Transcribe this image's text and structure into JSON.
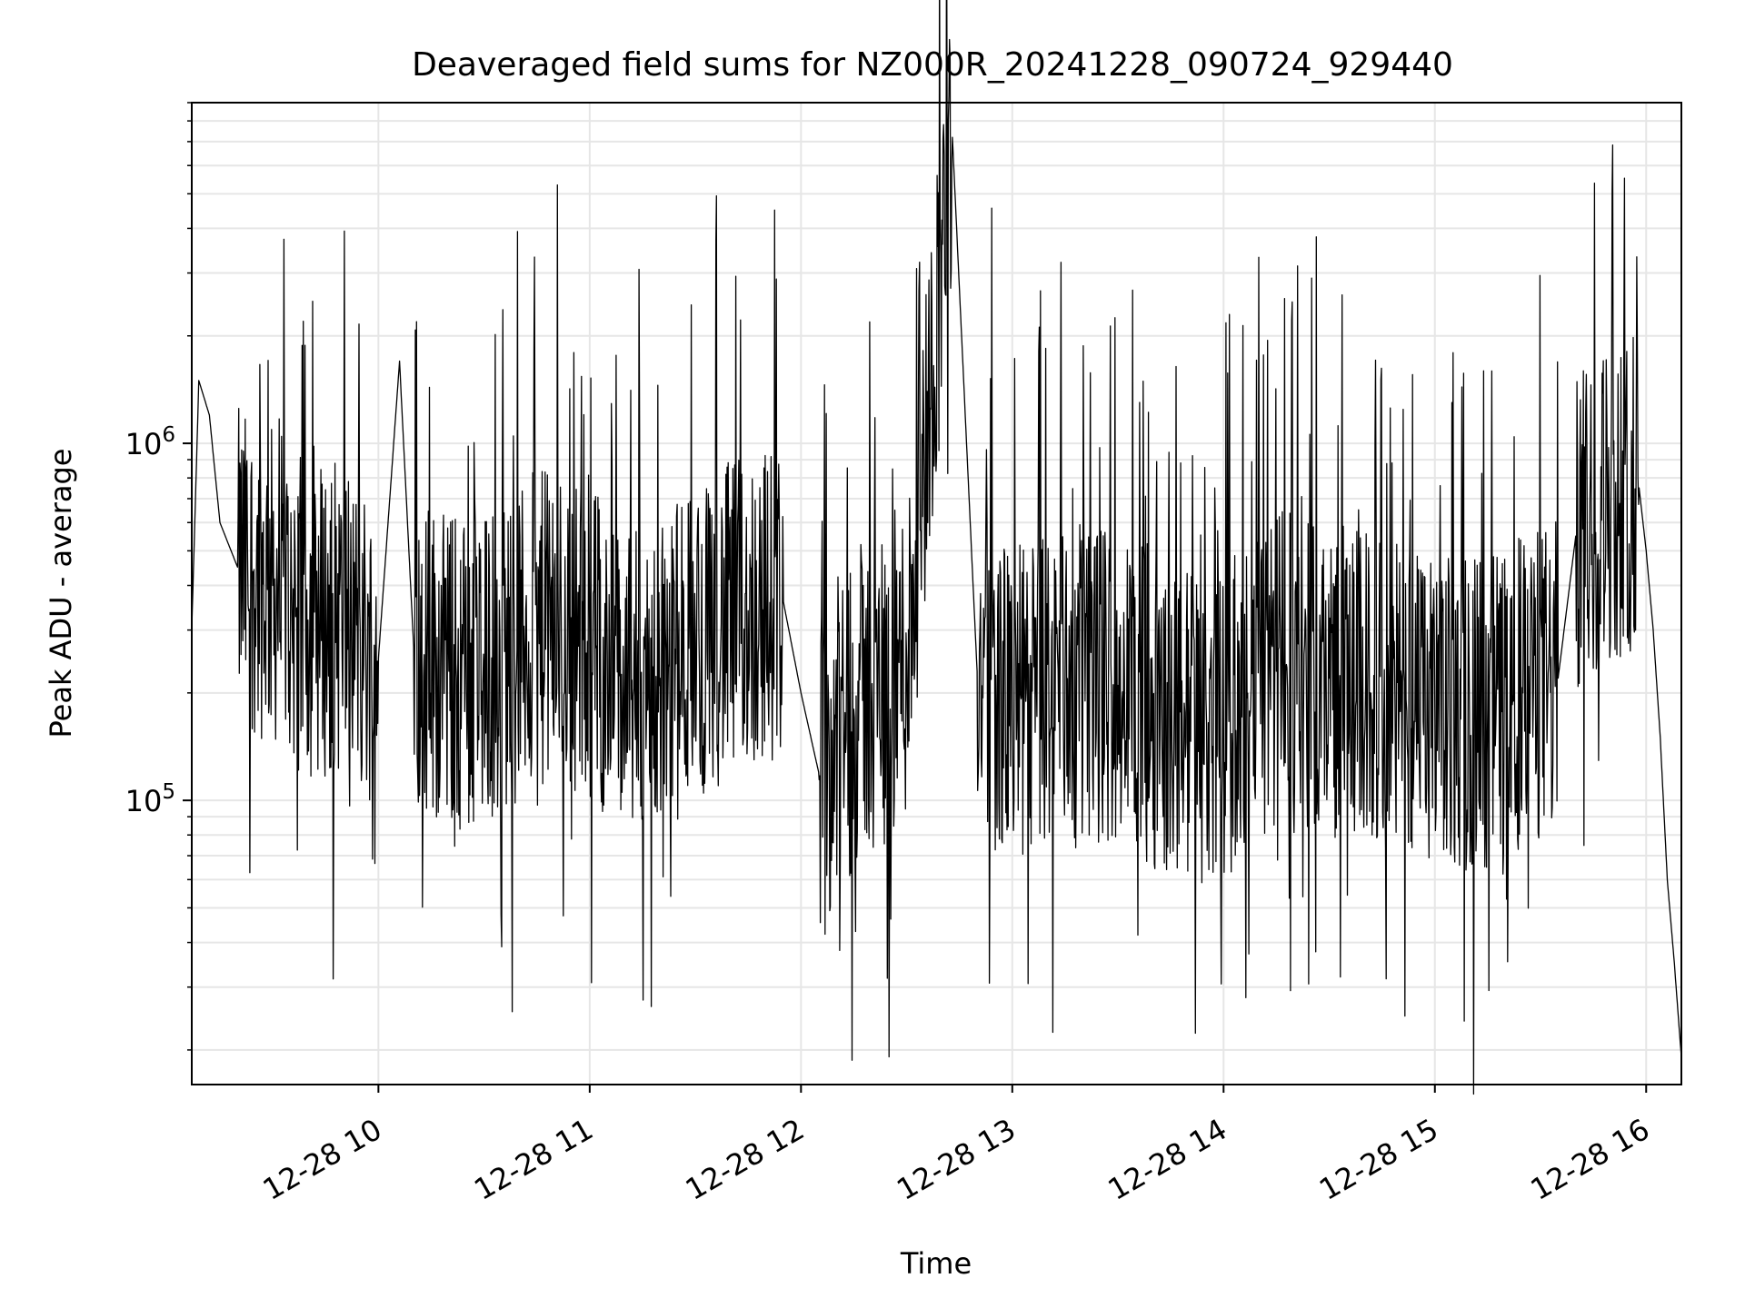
{
  "chart_data": {
    "type": "line",
    "title": "Deaveraged field sums for NZ000R_20241228_090724_929440",
    "xlabel": "Time",
    "ylabel": "Peak ADU - average",
    "x_axis": {
      "kind": "datetime",
      "range": [
        "2024-12-28 09:07",
        "2024-12-28 16:10"
      ],
      "ticks": [
        {
          "value": "2024-12-28 10:00",
          "label": "12-28 10"
        },
        {
          "value": "2024-12-28 11:00",
          "label": "12-28 11"
        },
        {
          "value": "2024-12-28 12:00",
          "label": "12-28 12"
        },
        {
          "value": "2024-12-28 13:00",
          "label": "12-28 13"
        },
        {
          "value": "2024-12-28 14:00",
          "label": "12-28 14"
        },
        {
          "value": "2024-12-28 15:00",
          "label": "12-28 15"
        },
        {
          "value": "2024-12-28 16:00",
          "label": "12-28 16"
        }
      ]
    },
    "y_axis": {
      "scale": "log",
      "range": [
        16000,
        9000000
      ],
      "ticks": [
        {
          "value": 100000,
          "base": "10",
          "exp": "5"
        },
        {
          "value": 1000000,
          "base": "10",
          "exp": "6"
        }
      ]
    },
    "grid": true,
    "line_color": "#000000",
    "series": [
      {
        "points": [
          [
            "2024-12-28 09:07",
            300000
          ],
          [
            "2024-12-28 09:09",
            1500000
          ],
          [
            "2024-12-28 09:12",
            1200000
          ],
          [
            "2024-12-28 09:15",
            600000
          ],
          [
            "2024-12-28 09:20",
            450000
          ],
          [
            "2024-12-28 09:30",
            400000
          ],
          [
            "2024-12-28 09:40",
            320000
          ],
          [
            "2024-12-28 09:50",
            330000
          ],
          [
            "2024-12-28 10:00",
            250000
          ],
          [
            "2024-12-28 10:06",
            1700000
          ],
          [
            "2024-12-28 10:10",
            270000
          ],
          [
            "2024-12-28 10:20",
            230000
          ],
          [
            "2024-12-28 10:30",
            230000
          ],
          [
            "2024-12-28 10:45",
            300000
          ],
          [
            "2024-12-28 11:00",
            290000
          ],
          [
            "2024-12-28 11:10",
            200000
          ],
          [
            "2024-12-28 11:20",
            220000
          ],
          [
            "2024-12-28 11:30",
            280000
          ],
          [
            "2024-12-28 11:45",
            340000
          ],
          [
            "2024-12-28 11:55",
            360000
          ],
          [
            "2024-12-28 12:00",
            200000
          ],
          [
            "2024-12-28 12:05",
            120000
          ],
          [
            "2024-12-28 12:15",
            180000
          ],
          [
            "2024-12-28 12:30",
            250000
          ],
          [
            "2024-12-28 12:43",
            7200000
          ],
          [
            "2024-12-28 12:50",
            230000
          ],
          [
            "2024-12-28 13:00",
            180000
          ],
          [
            "2024-12-28 13:15",
            220000
          ],
          [
            "2024-12-28 13:30",
            210000
          ],
          [
            "2024-12-28 13:45",
            170000
          ],
          [
            "2024-12-28 14:00",
            160000
          ],
          [
            "2024-12-28 14:15",
            230000
          ],
          [
            "2024-12-28 14:30",
            220000
          ],
          [
            "2024-12-28 14:45",
            200000
          ],
          [
            "2024-12-28 15:00",
            170000
          ],
          [
            "2024-12-28 15:15",
            180000
          ],
          [
            "2024-12-28 15:25",
            200000
          ],
          [
            "2024-12-28 15:35",
            220000
          ],
          [
            "2024-12-28 15:40",
            550000
          ],
          [
            "2024-12-28 15:50",
            700000
          ],
          [
            "2024-12-28 15:58",
            750000
          ],
          [
            "2024-12-28 16:00",
            500000
          ],
          [
            "2024-12-28 16:02",
            300000
          ],
          [
            "2024-12-28 16:04",
            150000
          ],
          [
            "2024-12-28 16:06",
            60000
          ],
          [
            "2024-12-28 16:08",
            35000
          ],
          [
            "2024-12-28 16:10",
            19000
          ]
        ]
      }
    ]
  }
}
